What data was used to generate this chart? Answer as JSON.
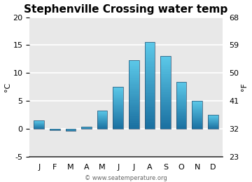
{
  "title": "Stephenville Crossing water temp",
  "months": [
    "J",
    "F",
    "M",
    "A",
    "M",
    "J",
    "J",
    "A",
    "S",
    "O",
    "N",
    "D"
  ],
  "values_c": [
    1.5,
    -0.2,
    -0.3,
    0.4,
    3.3,
    7.6,
    12.3,
    15.5,
    13.0,
    8.4,
    5.0,
    2.5
  ],
  "ylim_c": [
    -5,
    20
  ],
  "yticks_c": [
    -5,
    0,
    5,
    10,
    15,
    20
  ],
  "ylim_f": [
    23,
    68
  ],
  "yticks_f": [
    23,
    32,
    41,
    50,
    59,
    68
  ],
  "ylabel_left": "°C",
  "ylabel_right": "°F",
  "bar_color_top": "#5bc8e8",
  "bar_color_bottom": "#1a6fa0",
  "bar_edge_color": "#2a5070",
  "bg_plot": "#e8e8e8",
  "bg_figure": "#ffffff",
  "grid_color": "#ffffff",
  "watermark": "© www.seatemperature.org",
  "title_fontsize": 11,
  "axis_fontsize": 8,
  "tick_fontsize": 8
}
